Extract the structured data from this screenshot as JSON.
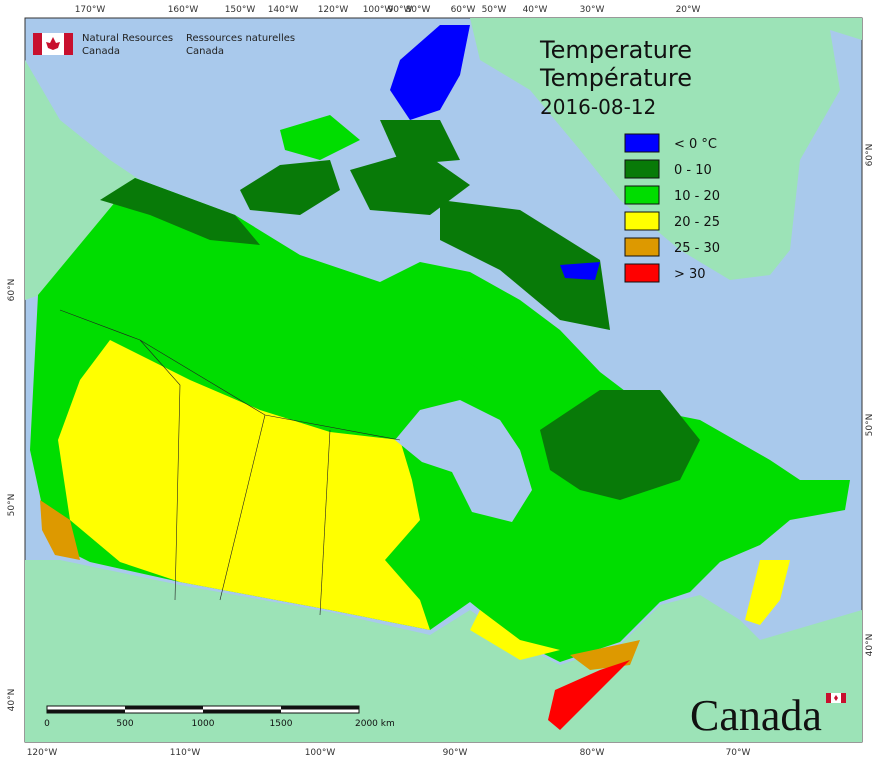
{
  "header": {
    "agency_en": [
      "Natural Resources",
      "Canada"
    ],
    "agency_fr": [
      "Ressources naturelles",
      "Canada"
    ]
  },
  "title": {
    "en": "Temperature",
    "fr": "Température",
    "date": "2016-08-12"
  },
  "legend": [
    {
      "label": "< 0 °C",
      "color": "#0000ff"
    },
    {
      "label": "0 - 10",
      "color": "#087a08"
    },
    {
      "label": "10 - 20",
      "color": "#00dd00"
    },
    {
      "label": "20 - 25",
      "color": "#ffff00"
    },
    {
      "label": "25 - 30",
      "color": "#dd9900"
    },
    {
      "label": "> 30",
      "color": "#ff0000"
    }
  ],
  "graticule": {
    "top": [
      "170°W",
      "160°W",
      "150°W",
      "140°W",
      "120°W",
      "100°W",
      "90°W",
      "80°W",
      "60°W",
      "50°W",
      "40°W",
      "30°W",
      "20°W"
    ],
    "bottom": [
      "120°W",
      "110°W",
      "100°W",
      "90°W",
      "80°W",
      "70°W"
    ],
    "left": [
      "60°N",
      "50°N",
      "40°N"
    ],
    "right": [
      "60°N",
      "50°N",
      "40°N"
    ]
  },
  "scale_bar": {
    "labels": [
      "0",
      "500",
      "1000",
      "1500",
      "2000 km"
    ]
  },
  "wordmark": "Canada"
}
